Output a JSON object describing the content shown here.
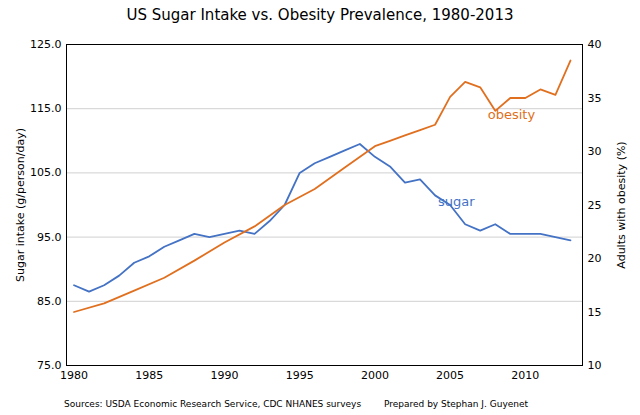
{
  "chart_data": {
    "type": "line",
    "title": "US Sugar Intake vs. Obesity Prevalence, 1980-2013",
    "footnotes": [
      "Sources: USDA Economic Research Service, CDC NHANES surveys",
      "Prepared by Stephan J. Guyenet"
    ],
    "ylabel": "Sugar intake (g/person/day)",
    "y2label": "Adults with obesity (%)",
    "series": [
      {
        "name": "sugar",
        "color": "#4472C4",
        "x": [
          1980,
          1981,
          1982,
          1983,
          1984,
          1985,
          1986,
          1987,
          1988,
          1989,
          1990,
          1991,
          1992,
          1993,
          1994,
          1995,
          1996,
          1997,
          1998,
          1999,
          2000,
          2001,
          2002,
          2003,
          2004,
          2005,
          2006,
          2007,
          2008,
          2009,
          2010,
          2011,
          2012,
          2013
        ],
        "values": [
          87.5,
          86.5,
          87.5,
          89.0,
          91.0,
          92.0,
          93.5,
          94.5,
          95.5,
          95.0,
          95.5,
          96.0,
          95.5,
          97.5,
          100.0,
          105.0,
          106.5,
          107.5,
          108.5,
          109.5,
          107.5,
          106.0,
          103.5,
          104.0,
          101.5,
          100.0,
          97.0,
          96.0,
          97.0,
          95.5,
          95.5,
          95.5,
          95.0,
          94.5
        ]
      },
      {
        "name": "obesity",
        "color": "#E07020",
        "axis": "y2",
        "x": [
          1980,
          1982,
          1984,
          1986,
          1988,
          1990,
          1992,
          1994,
          1996,
          1998,
          2000,
          2001,
          2002,
          2003,
          2004,
          2005,
          2006,
          2007,
          2008,
          2009,
          2010,
          2011,
          2012,
          2013
        ],
        "values": [
          15.0,
          15.8,
          17.0,
          18.2,
          19.8,
          21.5,
          23.0,
          25.0,
          26.5,
          28.5,
          30.5,
          31.0,
          31.5,
          32.0,
          32.5,
          35.1,
          36.5,
          36.0,
          33.8,
          35.0,
          35.0,
          35.8,
          35.3,
          38.5
        ]
      }
    ],
    "annotations": [
      {
        "text": "sugar",
        "x": 2004.2,
        "y": 100.5,
        "color": "#4472C4"
      },
      {
        "text": "obesity",
        "x": 2007.5,
        "y": 114.0,
        "color": "#E07020"
      }
    ],
    "xlim": [
      1979.5,
      2013.8
    ],
    "xticks": [
      1980,
      1985,
      1990,
      1995,
      2000,
      2005,
      2010
    ],
    "ylim": [
      75.0,
      125.0
    ],
    "yticks": [
      {
        "value": 75.0,
        "label": "75.0"
      },
      {
        "value": 85.0,
        "label": "85.0"
      },
      {
        "value": 95.0,
        "label": "95.0"
      },
      {
        "value": 105.0,
        "label": "105.0"
      },
      {
        "value": 115.0,
        "label": "115.0"
      },
      {
        "value": 125.0,
        "label": "125.0"
      }
    ],
    "y2lim": [
      10,
      40
    ],
    "y2ticks": [
      10,
      15,
      20,
      25,
      30,
      35,
      40
    ],
    "grid": true
  }
}
